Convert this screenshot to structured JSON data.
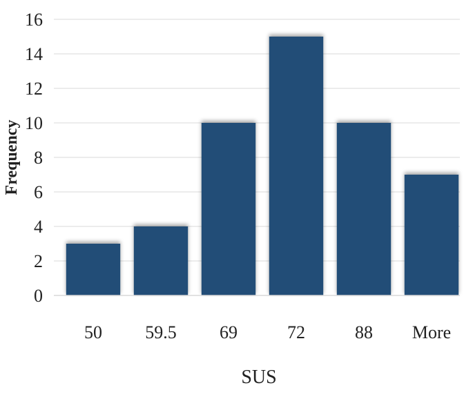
{
  "chart_data": {
    "type": "bar",
    "categories": [
      "50",
      "59.5",
      "69",
      "72",
      "88",
      "More"
    ],
    "values": [
      3,
      4,
      10,
      15,
      10,
      7
    ],
    "xlabel": "SUS",
    "ylabel": "Frequency",
    "ylim": [
      0,
      16
    ],
    "yticks": [
      0,
      2,
      4,
      6,
      8,
      10,
      12,
      14,
      16
    ],
    "grid": "horizontal",
    "bar_color": "#234E77",
    "grid_color": "#E6E6E6",
    "legend": "none"
  }
}
